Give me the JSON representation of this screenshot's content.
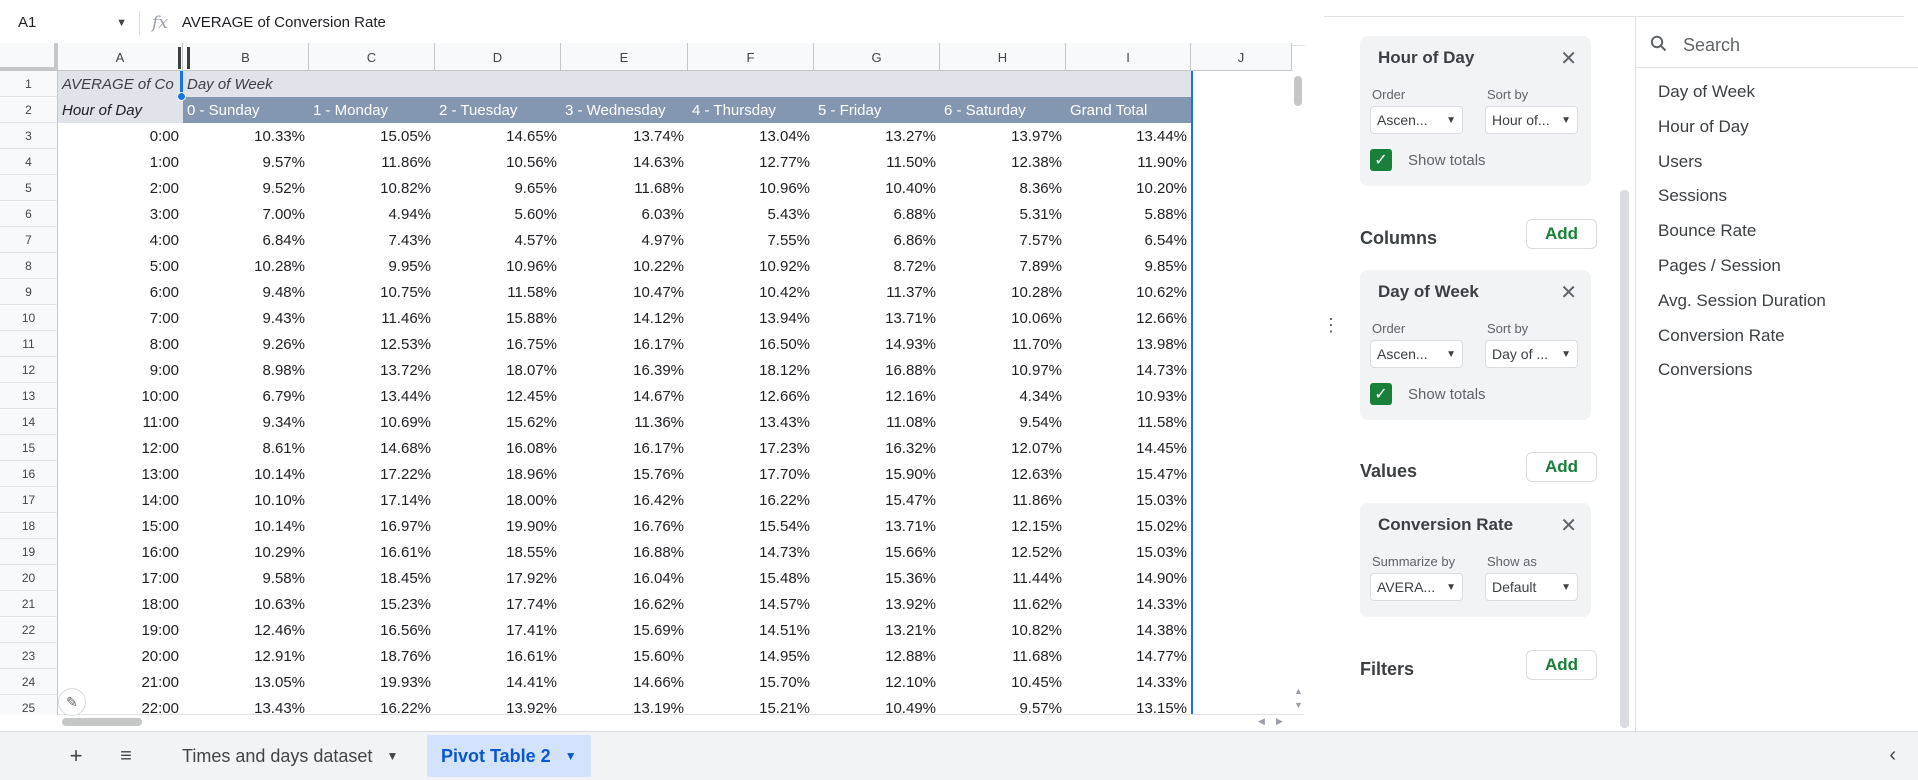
{
  "formula_bar": {
    "cell_ref": "A1",
    "fx": "fx",
    "formula": "AVERAGE of Conversion Rate"
  },
  "columns": [
    "A",
    "B",
    "C",
    "D",
    "E",
    "F",
    "G",
    "H",
    "I",
    "J"
  ],
  "rows": [
    "1",
    "2",
    "3",
    "4",
    "5",
    "6",
    "7",
    "8",
    "9",
    "10",
    "11",
    "12",
    "13",
    "14",
    "15",
    "16",
    "17",
    "18",
    "19",
    "20",
    "21",
    "22",
    "23",
    "24",
    "25"
  ],
  "pivot": {
    "title_cell": "AVERAGE of Co",
    "col_group": "Day of Week",
    "row_header": "Hour of Day",
    "day_headers": [
      "0 - Sunday",
      "1 - Monday",
      "2 - Tuesday",
      "3 - Wednesday",
      "4 - Thursday",
      "5 - Friday",
      "6 - Saturday",
      "Grand Total"
    ],
    "data": [
      [
        "0:00",
        "10.33%",
        "15.05%",
        "14.65%",
        "13.74%",
        "13.04%",
        "13.27%",
        "13.97%",
        "13.44%"
      ],
      [
        "1:00",
        "9.57%",
        "11.86%",
        "10.56%",
        "14.63%",
        "12.77%",
        "11.50%",
        "12.38%",
        "11.90%"
      ],
      [
        "2:00",
        "9.52%",
        "10.82%",
        "9.65%",
        "11.68%",
        "10.96%",
        "10.40%",
        "8.36%",
        "10.20%"
      ],
      [
        "3:00",
        "7.00%",
        "4.94%",
        "5.60%",
        "6.03%",
        "5.43%",
        "6.88%",
        "5.31%",
        "5.88%"
      ],
      [
        "4:00",
        "6.84%",
        "7.43%",
        "4.57%",
        "4.97%",
        "7.55%",
        "6.86%",
        "7.57%",
        "6.54%"
      ],
      [
        "5:00",
        "10.28%",
        "9.95%",
        "10.96%",
        "10.22%",
        "10.92%",
        "8.72%",
        "7.89%",
        "9.85%"
      ],
      [
        "6:00",
        "9.48%",
        "10.75%",
        "11.58%",
        "10.47%",
        "10.42%",
        "11.37%",
        "10.28%",
        "10.62%"
      ],
      [
        "7:00",
        "9.43%",
        "11.46%",
        "15.88%",
        "14.12%",
        "13.94%",
        "13.71%",
        "10.06%",
        "12.66%"
      ],
      [
        "8:00",
        "9.26%",
        "12.53%",
        "16.75%",
        "16.17%",
        "16.50%",
        "14.93%",
        "11.70%",
        "13.98%"
      ],
      [
        "9:00",
        "8.98%",
        "13.72%",
        "18.07%",
        "16.39%",
        "18.12%",
        "16.88%",
        "10.97%",
        "14.73%"
      ],
      [
        "10:00",
        "6.79%",
        "13.44%",
        "12.45%",
        "14.67%",
        "12.66%",
        "12.16%",
        "4.34%",
        "10.93%"
      ],
      [
        "11:00",
        "9.34%",
        "10.69%",
        "15.62%",
        "11.36%",
        "13.43%",
        "11.08%",
        "9.54%",
        "11.58%"
      ],
      [
        "12:00",
        "8.61%",
        "14.68%",
        "16.08%",
        "16.17%",
        "17.23%",
        "16.32%",
        "12.07%",
        "14.45%"
      ],
      [
        "13:00",
        "10.14%",
        "17.22%",
        "18.96%",
        "15.76%",
        "17.70%",
        "15.90%",
        "12.63%",
        "15.47%"
      ],
      [
        "14:00",
        "10.10%",
        "17.14%",
        "18.00%",
        "16.42%",
        "16.22%",
        "15.47%",
        "11.86%",
        "15.03%"
      ],
      [
        "15:00",
        "10.14%",
        "16.97%",
        "19.90%",
        "16.76%",
        "15.54%",
        "13.71%",
        "12.15%",
        "15.02%"
      ],
      [
        "16:00",
        "10.29%",
        "16.61%",
        "18.55%",
        "16.88%",
        "14.73%",
        "15.66%",
        "12.52%",
        "15.03%"
      ],
      [
        "17:00",
        "9.58%",
        "18.45%",
        "17.92%",
        "16.04%",
        "15.48%",
        "15.36%",
        "11.44%",
        "14.90%"
      ],
      [
        "18:00",
        "10.63%",
        "15.23%",
        "17.74%",
        "16.62%",
        "14.57%",
        "13.92%",
        "11.62%",
        "14.33%"
      ],
      [
        "19:00",
        "12.46%",
        "16.56%",
        "17.41%",
        "15.69%",
        "14.51%",
        "13.21%",
        "10.82%",
        "14.38%"
      ],
      [
        "20:00",
        "12.91%",
        "18.76%",
        "16.61%",
        "15.60%",
        "14.95%",
        "12.88%",
        "11.68%",
        "14.77%"
      ],
      [
        "21:00",
        "13.05%",
        "19.93%",
        "14.41%",
        "14.66%",
        "15.70%",
        "12.10%",
        "10.45%",
        "14.33%"
      ],
      [
        "22:00",
        "13.43%",
        "16.22%",
        "13.92%",
        "13.19%",
        "15.21%",
        "10.49%",
        "9.57%",
        "13.15%"
      ]
    ]
  },
  "sheet_tabs": {
    "add": "+",
    "all_sheets": "≡",
    "tabs": [
      {
        "label": "Times and days dataset",
        "active": false
      },
      {
        "label": "Pivot Table 2",
        "active": true
      }
    ]
  },
  "editor": {
    "rows_card": {
      "title": "Hour of Day",
      "order_label": "Order",
      "order_value": "Ascen...",
      "sort_label": "Sort by",
      "sort_value": "Hour of...",
      "totals_label": "Show totals"
    },
    "columns_section": {
      "title": "Columns",
      "add_label": "Add"
    },
    "columns_card": {
      "title": "Day of Week",
      "order_label": "Order",
      "order_value": "Ascen...",
      "sort_label": "Sort by",
      "sort_value": "Day of ...",
      "totals_label": "Show totals"
    },
    "values_section": {
      "title": "Values",
      "add_label": "Add"
    },
    "values_card": {
      "title": "Conversion Rate",
      "summarize_label": "Summarize by",
      "summarize_value": "AVERA...",
      "show_as_label": "Show as",
      "show_as_value": "Default"
    },
    "filters_section": {
      "title": "Filters",
      "add_label": "Add"
    },
    "search_placeholder": "Search",
    "fields": [
      "Day of Week",
      "Hour of Day",
      "Users",
      "Sessions",
      "Bounce Rate",
      "Pages / Session",
      "Avg. Session Duration",
      "Conversion Rate",
      "Conversions"
    ]
  },
  "colors": {
    "header_band": "#8497b0",
    "title_band": "#dfe3ea",
    "selection": "#1a73e8",
    "accent_green": "#188038",
    "active_tab": "#0b57d0"
  }
}
